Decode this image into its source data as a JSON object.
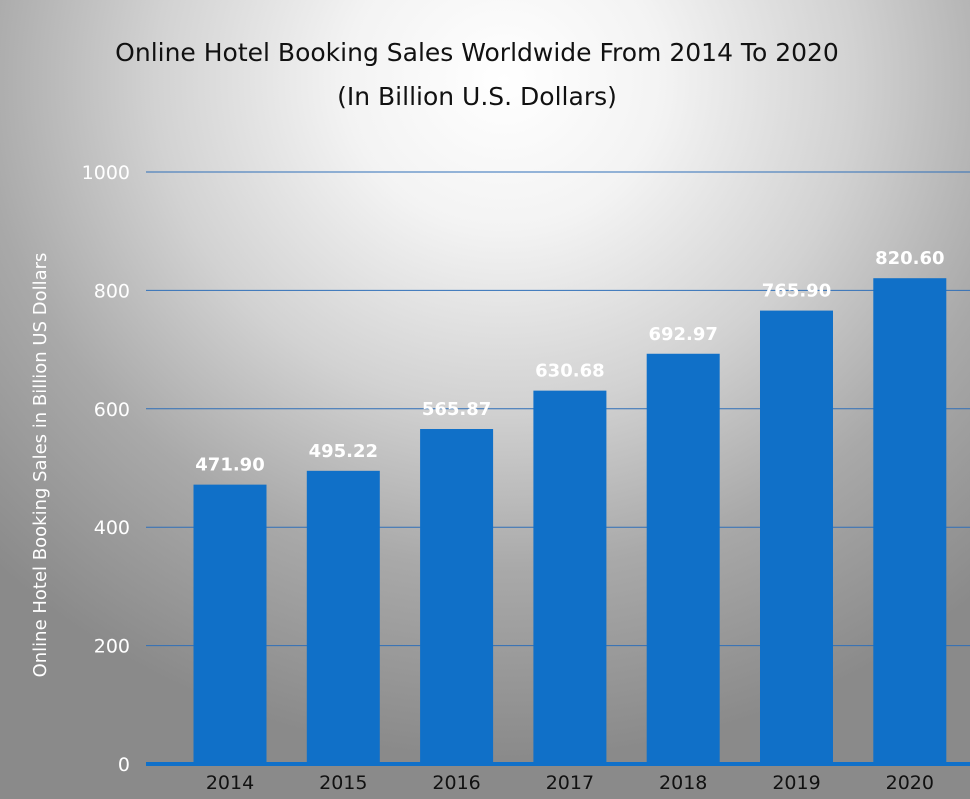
{
  "chart_data": {
    "type": "bar",
    "title": "Online Hotel Booking Sales Worldwide From 2014 To 2020",
    "subtitle": "(In Billion U.S. Dollars)",
    "xlabel": "",
    "ylabel": "Online Hotel Booking Sales in Billion US Dollars",
    "categories": [
      "2014",
      "2015",
      "2016",
      "2017",
      "2018",
      "2019",
      "2020"
    ],
    "values": [
      471.9,
      495.22,
      565.87,
      630.68,
      692.97,
      765.9,
      820.6
    ],
    "data_labels": [
      "471.90",
      "495.22",
      "565.87",
      "630.68",
      "692.97",
      "765.90",
      "820.60"
    ],
    "ylim": [
      0,
      1000
    ],
    "yticks": [
      0,
      200,
      400,
      600,
      800,
      1000
    ],
    "ytick_labels": [
      "0",
      "200",
      "400",
      "600",
      "800",
      "1000"
    ],
    "grid": true,
    "legend": "none"
  },
  "colors": {
    "bar": "#1070c8",
    "gridline": "#2f6fb8",
    "baseline": "#1070c8",
    "title_text": "#111111",
    "axis_text": "#ffffff",
    "data_label_text": "#ffffff"
  }
}
